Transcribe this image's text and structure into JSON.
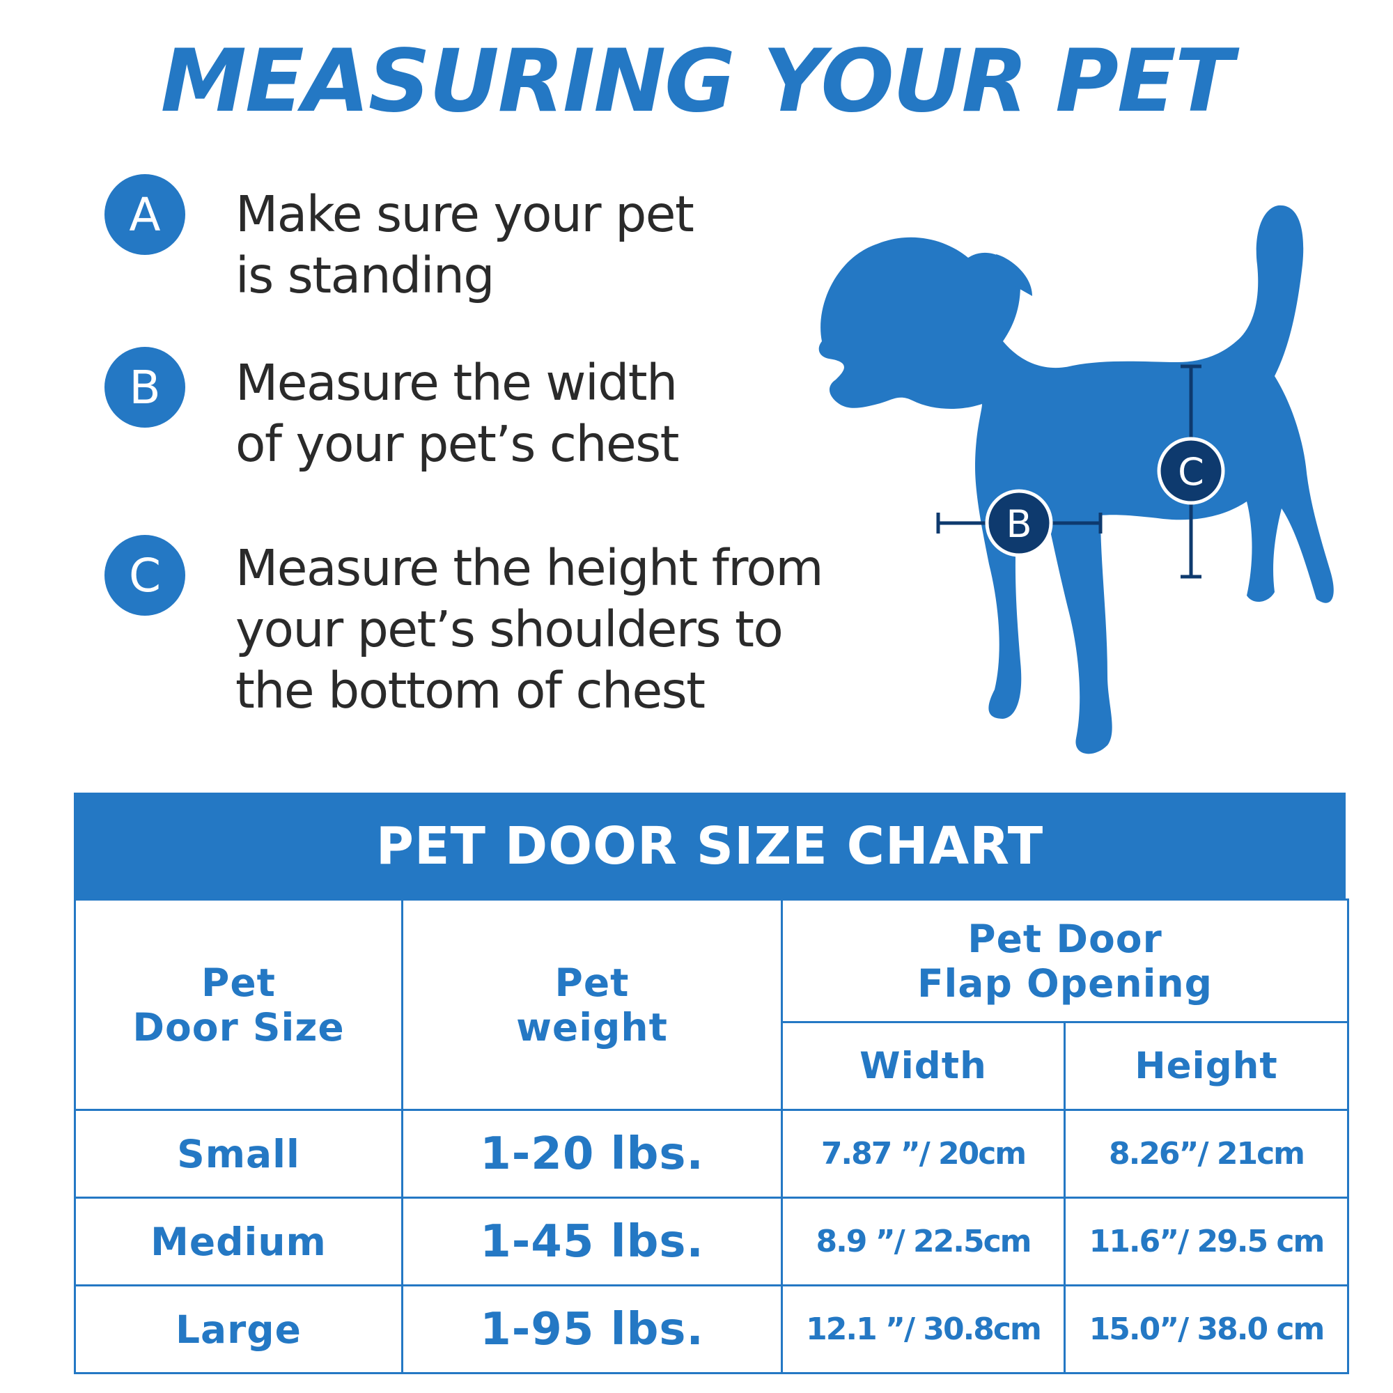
{
  "title": "MEASURING YOUR PET",
  "steps": [
    {
      "letter": "A",
      "text": "Make sure your pet\nis standing"
    },
    {
      "letter": "B",
      "text": "Measure the width\nof your pet’s chest"
    },
    {
      "letter": "C",
      "text": "Measure the height from\nyour pet’s shoulders to\nthe bottom of chest"
    }
  ],
  "diagram": {
    "label_b": "B",
    "label_c": "C"
  },
  "colors": {
    "brand_blue": "#2478c4",
    "marker_navy": "#0e3a6e",
    "text_dark": "#2a2a2a"
  },
  "size_chart": {
    "title": "PET DOOR SIZE CHART",
    "headers": {
      "size": "Pet\nDoor Size",
      "weight": "Pet\nweight",
      "opening": "Pet Door\nFlap Opening",
      "width": "Width",
      "height": "Height"
    },
    "rows": [
      {
        "size": "Small",
        "weight": "1-20 lbs.",
        "width": "7.87 ”/ 20cm",
        "height": "8.26”/ 21cm"
      },
      {
        "size": "Medium",
        "weight": "1-45 lbs.",
        "width": "8.9 ”/ 22.5cm",
        "height": "11.6”/ 29.5 cm"
      },
      {
        "size": "Large",
        "weight": "1-95 lbs.",
        "width": "12.1 ”/ 30.8cm",
        "height": "15.0”/ 38.0 cm"
      }
    ]
  }
}
